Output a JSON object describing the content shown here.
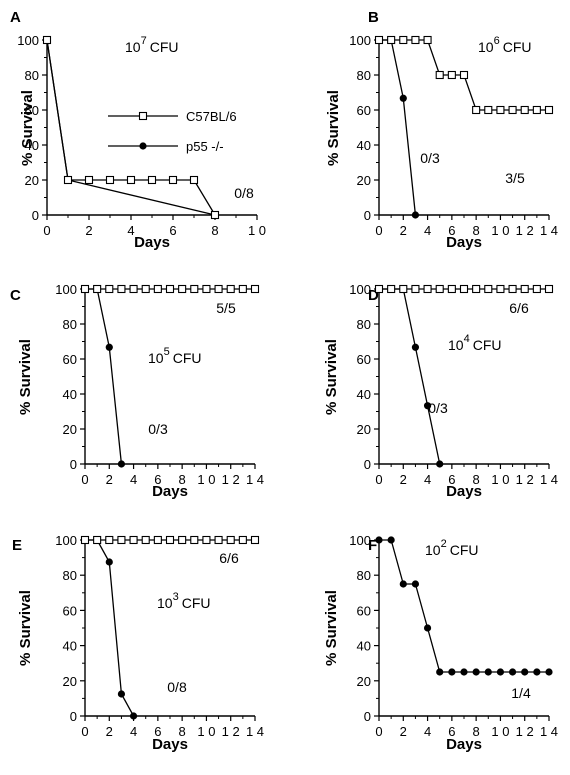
{
  "legend": [
    {
      "label": "C57BL/6",
      "marker": "open-square"
    },
    {
      "label": "p55   -/-",
      "marker": "filled-circle"
    }
  ],
  "chart_data": [
    {
      "panel": "A",
      "type": "line",
      "xlabel": "Days",
      "ylabel": "% Survival",
      "xlim": [
        0,
        10
      ],
      "ylim": [
        0,
        100
      ],
      "xticks": [
        0,
        2,
        4,
        6,
        8,
        10
      ],
      "xtick_labels": [
        "0",
        "2",
        "4",
        "6",
        "8",
        "1 0"
      ],
      "yticks": [
        0,
        20,
        40,
        60,
        80,
        100
      ],
      "dose": {
        "base": "10",
        "exp": "7",
        "unit": "CFU"
      },
      "series": [
        {
          "name": "C57BL/6",
          "marker": "open-square",
          "points": [
            [
              0,
              100
            ],
            [
              1,
              20
            ],
            [
              2,
              20
            ],
            [
              3,
              20
            ],
            [
              4,
              20
            ],
            [
              5,
              20
            ],
            [
              6,
              20
            ],
            [
              7,
              20
            ],
            [
              8,
              0
            ]
          ]
        },
        {
          "name": "p55   -/-",
          "marker": "filled-circle",
          "points": [
            [
              0,
              100
            ],
            [
              1,
              20
            ],
            [
              8,
              0
            ]
          ]
        }
      ],
      "annotations": [
        {
          "text": "0/8"
        }
      ]
    },
    {
      "panel": "B",
      "type": "line",
      "xlabel": "Days",
      "ylabel": "% Survival",
      "xlim": [
        0,
        14
      ],
      "ylim": [
        0,
        100
      ],
      "xticks": [
        0,
        2,
        4,
        6,
        8,
        10,
        12,
        14
      ],
      "xtick_labels": [
        "0",
        "2",
        "4",
        "6",
        "8",
        "1 0",
        "1 2",
        "1 4"
      ],
      "yticks": [
        0,
        20,
        40,
        60,
        80,
        100
      ],
      "dose": {
        "base": "10",
        "exp": "6",
        "unit": "CFU"
      },
      "series": [
        {
          "name": "C57BL/6",
          "marker": "open-square",
          "points": [
            [
              0,
              100
            ],
            [
              1,
              100
            ],
            [
              2,
              100
            ],
            [
              3,
              100
            ],
            [
              4,
              100
            ],
            [
              5,
              80
            ],
            [
              6,
              80
            ],
            [
              7,
              80
            ],
            [
              8,
              60
            ],
            [
              9,
              60
            ],
            [
              10,
              60
            ],
            [
              11,
              60
            ],
            [
              12,
              60
            ],
            [
              13,
              60
            ],
            [
              14,
              60
            ]
          ]
        },
        {
          "name": "p55   -/-",
          "marker": "filled-circle",
          "points": [
            [
              0,
              100
            ],
            [
              1,
              100
            ],
            [
              2,
              66.7
            ],
            [
              3,
              0
            ]
          ]
        }
      ],
      "annotations": [
        {
          "text": "3/5"
        },
        {
          "text": "0/3"
        }
      ]
    },
    {
      "panel": "C",
      "type": "line",
      "xlabel": "Days",
      "ylabel": "% Survival",
      "xlim": [
        0,
        14
      ],
      "ylim": [
        0,
        100
      ],
      "xticks": [
        0,
        2,
        4,
        6,
        8,
        10,
        12,
        14
      ],
      "xtick_labels": [
        "0",
        "2",
        "4",
        "6",
        "8",
        "1 0",
        "1 2",
        "1 4"
      ],
      "yticks": [
        0,
        20,
        40,
        60,
        80,
        100
      ],
      "dose": {
        "base": "10",
        "exp": "5",
        "unit": "CFU"
      },
      "series": [
        {
          "name": "C57BL/6",
          "marker": "open-square",
          "points": [
            [
              0,
              100
            ],
            [
              1,
              100
            ],
            [
              2,
              100
            ],
            [
              3,
              100
            ],
            [
              4,
              100
            ],
            [
              5,
              100
            ],
            [
              6,
              100
            ],
            [
              7,
              100
            ],
            [
              8,
              100
            ],
            [
              9,
              100
            ],
            [
              10,
              100
            ],
            [
              11,
              100
            ],
            [
              12,
              100
            ],
            [
              13,
              100
            ],
            [
              14,
              100
            ]
          ]
        },
        {
          "name": "p55   -/-",
          "marker": "filled-circle",
          "points": [
            [
              0,
              100
            ],
            [
              1,
              100
            ],
            [
              2,
              66.7
            ],
            [
              3,
              0
            ]
          ]
        }
      ],
      "annotations": [
        {
          "text": "5/5"
        },
        {
          "text": "0/3"
        }
      ]
    },
    {
      "panel": "D",
      "type": "line",
      "xlabel": "Days",
      "ylabel": "% Survival",
      "xlim": [
        0,
        14
      ],
      "ylim": [
        0,
        100
      ],
      "xticks": [
        0,
        2,
        4,
        6,
        8,
        10,
        12,
        14
      ],
      "xtick_labels": [
        "0",
        "2",
        "4",
        "6",
        "8",
        "1 0",
        "1 2",
        "1 4"
      ],
      "yticks": [
        0,
        20,
        40,
        60,
        80,
        100
      ],
      "dose": {
        "base": "10",
        "exp": "4",
        "unit": "CFU"
      },
      "series": [
        {
          "name": "C57BL/6",
          "marker": "open-square",
          "points": [
            [
              0,
              100
            ],
            [
              1,
              100
            ],
            [
              2,
              100
            ],
            [
              3,
              100
            ],
            [
              4,
              100
            ],
            [
              5,
              100
            ],
            [
              6,
              100
            ],
            [
              7,
              100
            ],
            [
              8,
              100
            ],
            [
              9,
              100
            ],
            [
              10,
              100
            ],
            [
              11,
              100
            ],
            [
              12,
              100
            ],
            [
              13,
              100
            ],
            [
              14,
              100
            ]
          ]
        },
        {
          "name": "p55   -/-",
          "marker": "filled-circle",
          "points": [
            [
              0,
              100
            ],
            [
              1,
              100
            ],
            [
              2,
              100
            ],
            [
              3,
              66.7
            ],
            [
              4,
              33.3
            ],
            [
              5,
              0
            ]
          ]
        }
      ],
      "annotations": [
        {
          "text": "6/6"
        },
        {
          "text": "0/3"
        }
      ]
    },
    {
      "panel": "E",
      "type": "line",
      "xlabel": "Days",
      "ylabel": "% Survival",
      "xlim": [
        0,
        14
      ],
      "ylim": [
        0,
        100
      ],
      "xticks": [
        0,
        2,
        4,
        6,
        8,
        10,
        12,
        14
      ],
      "xtick_labels": [
        "0",
        "2",
        "4",
        "6",
        "8",
        "1 0",
        "1 2",
        "1 4"
      ],
      "yticks": [
        0,
        20,
        40,
        60,
        80,
        100
      ],
      "dose": {
        "base": "10",
        "exp": "3",
        "unit": "CFU"
      },
      "series": [
        {
          "name": "C57BL/6",
          "marker": "open-square",
          "points": [
            [
              0,
              100
            ],
            [
              1,
              100
            ],
            [
              2,
              100
            ],
            [
              3,
              100
            ],
            [
              4,
              100
            ],
            [
              5,
              100
            ],
            [
              6,
              100
            ],
            [
              7,
              100
            ],
            [
              8,
              100
            ],
            [
              9,
              100
            ],
            [
              10,
              100
            ],
            [
              11,
              100
            ],
            [
              12,
              100
            ],
            [
              13,
              100
            ],
            [
              14,
              100
            ]
          ]
        },
        {
          "name": "p55   -/-",
          "marker": "filled-circle",
          "points": [
            [
              0,
              100
            ],
            [
              1,
              100
            ],
            [
              2,
              87.5
            ],
            [
              3,
              12.5
            ],
            [
              4,
              0
            ]
          ]
        }
      ],
      "annotations": [
        {
          "text": "6/6"
        },
        {
          "text": "0/8"
        }
      ]
    },
    {
      "panel": "F",
      "type": "line",
      "xlabel": "Days",
      "ylabel": "% Survival",
      "xlim": [
        0,
        14
      ],
      "ylim": [
        0,
        100
      ],
      "xticks": [
        0,
        2,
        4,
        6,
        8,
        10,
        12,
        14
      ],
      "xtick_labels": [
        "0",
        "2",
        "4",
        "6",
        "8",
        "1 0",
        "1 2",
        "1 4"
      ],
      "yticks": [
        0,
        20,
        40,
        60,
        80,
        100
      ],
      "dose": {
        "base": "10",
        "exp": "2",
        "unit": "CFU"
      },
      "series": [
        {
          "name": "p55   -/-",
          "marker": "filled-circle",
          "points": [
            [
              0,
              100
            ],
            [
              1,
              100
            ],
            [
              2,
              75
            ],
            [
              3,
              75
            ],
            [
              4,
              50
            ],
            [
              5,
              25
            ],
            [
              6,
              25
            ],
            [
              7,
              25
            ],
            [
              8,
              25
            ],
            [
              9,
              25
            ],
            [
              10,
              25
            ],
            [
              11,
              25
            ],
            [
              12,
              25
            ],
            [
              13,
              25
            ],
            [
              14,
              25
            ]
          ]
        }
      ],
      "annotations": [
        {
          "text": "1/4"
        }
      ]
    }
  ]
}
